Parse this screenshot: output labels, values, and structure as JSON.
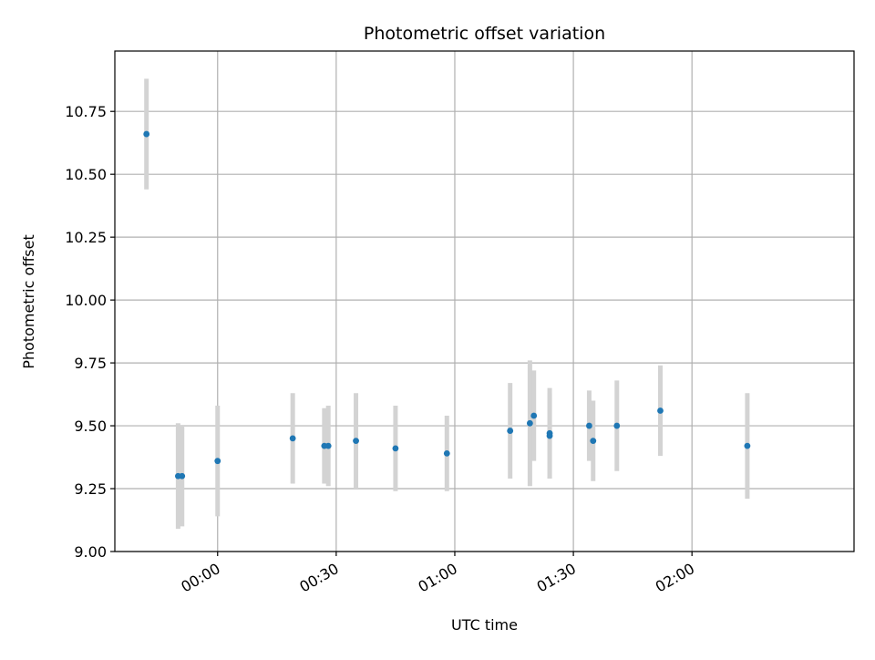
{
  "chart_data": {
    "type": "scatter",
    "title": "Photometric offset variation",
    "xlabel": "UTC time",
    "ylabel": "Photometric offset",
    "x_tick_labels": [
      "00:00",
      "00:30",
      "01:00",
      "01:30",
      "02:00"
    ],
    "x_ticks": [
      "00:00",
      "00:30",
      "01:00",
      "01:30",
      "02:00"
    ],
    "xlim": [
      "-00:26",
      "02:41"
    ],
    "y_tick_labels": [
      "9.00",
      "9.25",
      "9.50",
      "9.75",
      "10.00",
      "10.25",
      "10.50",
      "10.75"
    ],
    "y_ticks": [
      9.0,
      9.25,
      9.5,
      9.75,
      10.0,
      10.25,
      10.5,
      10.75
    ],
    "ylim": [
      9.0,
      10.99
    ],
    "grid": true,
    "series": [
      {
        "marker_color": "#1f77b4",
        "errorbar_color": "#d3d3d3",
        "points": [
          {
            "x": "-00:18",
            "y": 10.66,
            "yerr": 0.22
          },
          {
            "x": "-00:10",
            "y": 9.3,
            "yerr": 0.21
          },
          {
            "x": "-00:09",
            "y": 9.3,
            "yerr": 0.2
          },
          {
            "x": "00:00",
            "y": 9.36,
            "yerr": 0.22
          },
          {
            "x": "00:19",
            "y": 9.45,
            "yerr": 0.18
          },
          {
            "x": "00:27",
            "y": 9.42,
            "yerr": 0.15
          },
          {
            "x": "00:28",
            "y": 9.42,
            "yerr": 0.16
          },
          {
            "x": "00:35",
            "y": 9.44,
            "yerr": 0.19
          },
          {
            "x": "00:45",
            "y": 9.41,
            "yerr": 0.17
          },
          {
            "x": "00:58",
            "y": 9.39,
            "yerr": 0.15
          },
          {
            "x": "01:14",
            "y": 9.48,
            "yerr": 0.19
          },
          {
            "x": "01:19",
            "y": 9.51,
            "yerr": 0.25
          },
          {
            "x": "01:20",
            "y": 9.54,
            "yerr": 0.18
          },
          {
            "x": "01:24",
            "y": 9.46,
            "yerr": 0.17
          },
          {
            "x": "01:24",
            "y": 9.47,
            "yerr": 0.18
          },
          {
            "x": "01:34",
            "y": 9.5,
            "yerr": 0.14
          },
          {
            "x": "01:35",
            "y": 9.44,
            "yerr": 0.16
          },
          {
            "x": "01:41",
            "y": 9.5,
            "yerr": 0.18
          },
          {
            "x": "01:52",
            "y": 9.56,
            "yerr": 0.18
          },
          {
            "x": "02:14",
            "y": 9.42,
            "yerr": 0.21
          }
        ]
      }
    ]
  }
}
